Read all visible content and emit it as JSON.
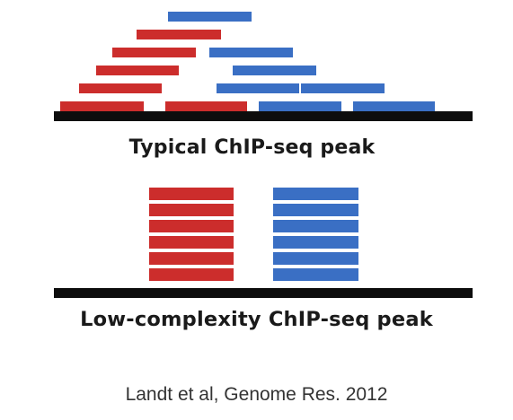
{
  "colors": {
    "red": "#cc2d2c",
    "blue": "#3a6fc4",
    "baseline": "#0d0d0d"
  },
  "panels": {
    "typical": {
      "label": "Typical ChIP-seq peak"
    },
    "low_complexity": {
      "label": "Low-complexity ChIP-seq peak"
    }
  },
  "citation": "Landt et al, Genome Res. 2012"
}
